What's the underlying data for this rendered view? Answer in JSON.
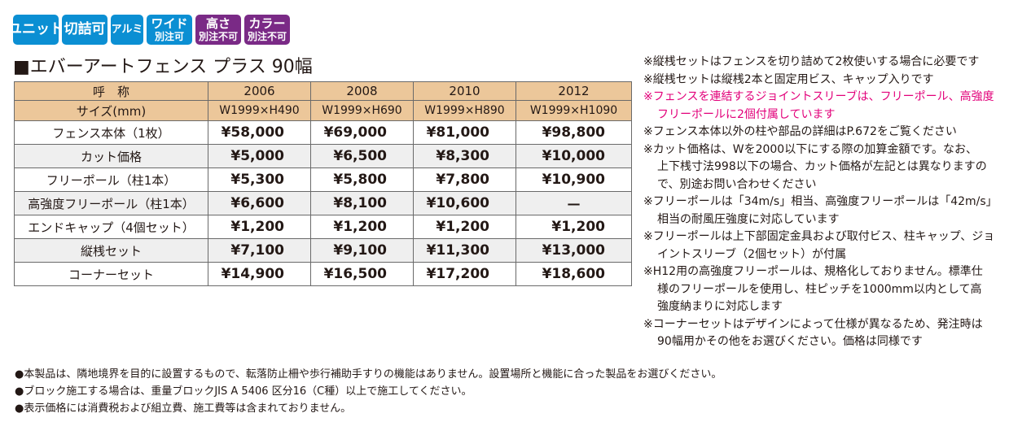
{
  "badges": [
    {
      "line1": "ユニット",
      "line2": "",
      "color": "#0b8fd3"
    },
    {
      "line1": "切詰可",
      "line2": "",
      "color": "#0b8fd3"
    },
    {
      "line1": "アルミ",
      "line2": "",
      "color": "#0b8fd3"
    },
    {
      "line1": "ワイド",
      "line2": "別注可",
      "color": "#0b8fd3"
    },
    {
      "line1": "高さ",
      "line2": "別注不可",
      "color": "#7a2a86"
    },
    {
      "line1": "カラー",
      "line2": "別注不可",
      "color": "#7a2a86"
    }
  ],
  "title": "■エバーアートフェンス プラス 90幅",
  "table": {
    "header": {
      "label": "呼　称",
      "cols": [
        "2006",
        "2008",
        "2010",
        "2012"
      ]
    },
    "size_row": {
      "label": "サイズ(mm)",
      "cols": [
        "W1999×H490",
        "W1999×H690",
        "W1999×H890",
        "W1999×H1090"
      ]
    },
    "rows": [
      {
        "label": "フェンス本体（1枚）",
        "values": [
          "¥58,000",
          "¥69,000",
          "¥81,000",
          "¥98,800"
        ]
      },
      {
        "label": "カット価格",
        "values": [
          "¥5,000",
          "¥6,500",
          "¥8,300",
          "¥10,000"
        ]
      },
      {
        "label": "フリーポール（柱1本）",
        "values": [
          "¥5,300",
          "¥5,800",
          "¥7,800",
          "¥10,900"
        ]
      },
      {
        "label": "高強度フリーポール（柱1本）",
        "values": [
          "¥6,600",
          "¥8,100",
          "¥10,600",
          "—"
        ]
      },
      {
        "label": "エンドキャップ（4個セット）",
        "values": [
          "¥1,200",
          "¥1,200",
          "¥1,200",
          "¥1,200"
        ]
      },
      {
        "label": "縦桟セット",
        "values": [
          "¥7,100",
          "¥9,100",
          "¥11,300",
          "¥13,000"
        ]
      },
      {
        "label": "コーナーセット",
        "values": [
          "¥14,900",
          "¥16,500",
          "¥17,200",
          "¥18,600"
        ]
      }
    ]
  },
  "notes": [
    "※縦桟セットはフェンスを切り詰めて2枚使いする場合に必要です",
    "※縦桟セットは縦桟2本と固定用ビス、キャップ入りです",
    "※フェンスを連結するジョイントスリーブは、フリーポール、高強度",
    "フリーポールに2個付属しています",
    "※フェンス本体以外の柱や部品の詳細はP.672をご覧ください",
    "※カット価格は、Wを2000以下にする際の加算金額です。なお、",
    "上下桟寸法998以下の場合、カット価格が左記とは異なりますの",
    "で、別途お問い合わせください",
    "※フリーポールは「34m/s」相当、高強度フリーポールは「42m/s」",
    "相当の耐風圧強度に対応しています",
    "※フリーポールは上下部固定金具および取付ビス、柱キャップ、ジョ",
    "イントスリーブ（2個セット）が付属",
    "※H12用の高強度フリーポールは、規格化しておりません。標準仕",
    "様のフリーポールを使用し、柱ピッチを1000mm以内として高",
    "強度納まりに対応します",
    "※コーナーセットはデザインによって仕様が異なるため、発注時は",
    "90幅用かその他をお選びください。価格は同様です"
  ],
  "footnotes": [
    "●本製品は、隣地境界を目的に設置するもので、転落防止柵や歩行補助手すりの機能はありません。設置場所と機能に合った製品をお選びください。",
    "●ブロック施工する場合は、重量ブロックJIS A 5406 区分16（C種）以上で施工してください。",
    "●表示価格には消費税および組立費、施工費等は含まれておりません。"
  ]
}
